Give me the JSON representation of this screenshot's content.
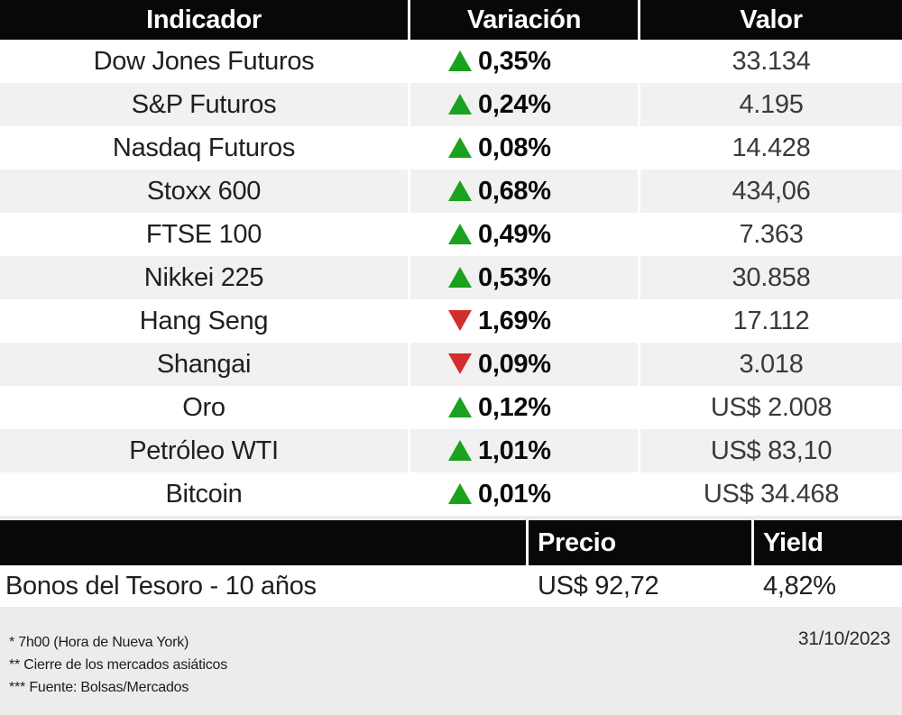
{
  "colors": {
    "up-green": "#1aa11e",
    "down-red": "#d32d2d",
    "header-black": "#080808",
    "row-alt-gray": "#f1f1f1",
    "page-gray": "#ececec"
  },
  "chart_data": {
    "type": "table",
    "main_table": {
      "headers": [
        "Indicador",
        "Variación",
        "Valor"
      ],
      "rows": [
        {
          "indicator": "Dow Jones Futuros",
          "direction": "up",
          "change": "0,35%",
          "value": "33.134"
        },
        {
          "indicator": "S&P Futuros",
          "direction": "up",
          "change": "0,24%",
          "value": "4.195"
        },
        {
          "indicator": "Nasdaq Futuros",
          "direction": "up",
          "change": "0,08%",
          "value": "14.428"
        },
        {
          "indicator": "Stoxx 600",
          "direction": "up",
          "change": "0,68%",
          "value": "434,06"
        },
        {
          "indicator": "FTSE 100",
          "direction": "up",
          "change": "0,49%",
          "value": "7.363"
        },
        {
          "indicator": "Nikkei 225",
          "direction": "up",
          "change": "0,53%",
          "value": "30.858"
        },
        {
          "indicator": "Hang Seng",
          "direction": "down",
          "change": "1,69%",
          "value": "17.112"
        },
        {
          "indicator": "Shangai",
          "direction": "down",
          "change": "0,09%",
          "value": "3.018"
        },
        {
          "indicator": "Oro",
          "direction": "up",
          "change": "0,12%",
          "value": "US$ 2.008"
        },
        {
          "indicator": "Petróleo WTI",
          "direction": "up",
          "change": "1,01%",
          "value": "US$ 83,10"
        },
        {
          "indicator": "Bitcoin",
          "direction": "up",
          "change": "0,01%",
          "value": "US$ 34.468"
        }
      ]
    },
    "bonds_table": {
      "headers": {
        "precio": "Precio",
        "yield": "Yield"
      },
      "rows": [
        {
          "name": "Bonos del Tesoro - 10 años",
          "precio": "US$ 92,72",
          "yield": "4,82%"
        }
      ]
    }
  },
  "footer": {
    "notes": [
      "* 7h00 (Hora de Nueva York)",
      "** Cierre de los mercados asiáticos",
      "*** Fuente: Bolsas/Mercados"
    ],
    "date": "31/10/2023"
  }
}
